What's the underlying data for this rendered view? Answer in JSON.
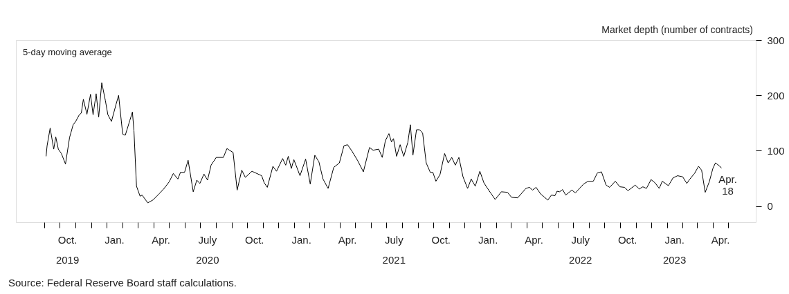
{
  "chart_data": {
    "type": "line",
    "ylabel": "Market depth (number of contracts)",
    "annotations": [
      "5-day moving average",
      {
        "text": "Apr.\n18",
        "x": "2023-04-18",
        "y": 69
      },
      "Source: Federal Reserve Board staff calculations."
    ],
    "xlim": [
      "2019-07-07",
      "2023-06-24"
    ],
    "ylim": [
      -29,
      300
    ],
    "yticks": [
      0,
      100,
      200,
      300
    ],
    "xticks": [
      {
        "value": "2019-09-01",
        "label": null
      },
      {
        "value": "2019-10-01",
        "label": null
      },
      {
        "value": "2019-11-01",
        "label": null
      },
      {
        "value": "2019-12-01",
        "label": null
      },
      {
        "value": "2020-01-01",
        "label": null
      },
      {
        "value": "2020-02-01",
        "label": null
      },
      {
        "value": "2020-03-01",
        "label": null
      },
      {
        "value": "2020-04-01",
        "label": null
      },
      {
        "value": "2020-05-01",
        "label": null
      },
      {
        "value": "2020-06-01",
        "label": null
      },
      {
        "value": "2020-07-01",
        "label": null
      },
      {
        "value": "2020-08-01",
        "label": null
      },
      {
        "value": "2020-09-01",
        "label": null
      },
      {
        "value": "2020-10-01",
        "label": null
      },
      {
        "value": "2020-11-01",
        "label": null
      },
      {
        "value": "2020-12-01",
        "label": null
      },
      {
        "value": "2021-01-01",
        "label": null
      },
      {
        "value": "2021-02-01",
        "label": null
      },
      {
        "value": "2021-03-01",
        "label": null
      },
      {
        "value": "2021-04-01",
        "label": null
      },
      {
        "value": "2021-05-01",
        "label": null
      },
      {
        "value": "2021-06-01",
        "label": null
      },
      {
        "value": "2021-07-01",
        "label": null
      },
      {
        "value": "2021-08-01",
        "label": null
      },
      {
        "value": "2021-09-01",
        "label": null
      },
      {
        "value": "2021-10-01",
        "label": null
      },
      {
        "value": "2021-11-01",
        "label": null
      },
      {
        "value": "2021-12-01",
        "label": null
      },
      {
        "value": "2022-01-01",
        "label": null
      },
      {
        "value": "2022-02-01",
        "label": null
      },
      {
        "value": "2022-03-01",
        "label": null
      },
      {
        "value": "2022-04-01",
        "label": null
      },
      {
        "value": "2022-05-01",
        "label": null
      },
      {
        "value": "2022-06-01",
        "label": null
      },
      {
        "value": "2022-07-01",
        "label": null
      },
      {
        "value": "2022-08-01",
        "label": null
      },
      {
        "value": "2022-09-01",
        "label": null
      },
      {
        "value": "2022-10-01",
        "label": null
      },
      {
        "value": "2022-11-01",
        "label": null
      },
      {
        "value": "2022-12-01",
        "label": null
      },
      {
        "value": "2023-01-01",
        "label": null
      },
      {
        "value": "2023-02-01",
        "label": null
      },
      {
        "value": "2023-03-01",
        "label": null
      },
      {
        "value": "2023-04-01",
        "label": null
      },
      {
        "value": "2023-05-01",
        "label": null
      },
      {
        "value": "2019-10-16",
        "label": "Oct.\n2019"
      },
      {
        "value": "2020-01-16",
        "label": "Jan."
      },
      {
        "value": "2020-04-16",
        "label": "Apr."
      },
      {
        "value": "2020-07-16",
        "label": "July\n2020"
      },
      {
        "value": "2020-10-16",
        "label": "Oct."
      },
      {
        "value": "2021-01-16",
        "label": "Jan."
      },
      {
        "value": "2021-04-16",
        "label": "Apr."
      },
      {
        "value": "2021-07-16",
        "label": "July\n2021"
      },
      {
        "value": "2021-10-16",
        "label": "Oct."
      },
      {
        "value": "2022-01-16",
        "label": "Jan."
      },
      {
        "value": "2022-04-16",
        "label": "Apr."
      },
      {
        "value": "2022-07-16",
        "label": "July\n2022"
      },
      {
        "value": "2022-10-16",
        "label": "Oct."
      },
      {
        "value": "2023-01-16",
        "label": "Jan.\n2023"
      },
      {
        "value": "2023-04-16",
        "label": "Apr."
      }
    ],
    "x": [
      "2019-09-04",
      "2019-09-06",
      "2019-09-12",
      "2019-09-19",
      "2019-09-23",
      "2019-09-28",
      "2019-10-04",
      "2019-10-12",
      "2019-10-20",
      "2019-10-27",
      "2019-11-01",
      "2019-11-08",
      "2019-11-12",
      "2019-11-16",
      "2019-11-23",
      "2019-11-30",
      "2019-12-05",
      "2019-12-11",
      "2019-12-16",
      "2019-12-22",
      "2019-12-29",
      "2020-01-03",
      "2020-01-10",
      "2020-01-19",
      "2020-01-24",
      "2020-02-01",
      "2020-02-06",
      "2020-02-15",
      "2020-02-20",
      "2020-02-23",
      "2020-02-28",
      "2020-03-06",
      "2020-03-10",
      "2020-03-21",
      "2020-03-31",
      "2020-04-13",
      "2020-04-22",
      "2020-05-02",
      "2020-05-10",
      "2020-05-19",
      "2020-05-24",
      "2020-06-01",
      "2020-06-08",
      "2020-06-18",
      "2020-06-25",
      "2020-07-01",
      "2020-07-09",
      "2020-07-16",
      "2020-07-23",
      "2020-08-02",
      "2020-08-16",
      "2020-08-23",
      "2020-09-04",
      "2020-09-12",
      "2020-09-21",
      "2020-09-28",
      "2020-10-11",
      "2020-10-30",
      "2020-11-04",
      "2020-11-10",
      "2020-11-21",
      "2020-11-28",
      "2020-12-10",
      "2020-12-16",
      "2020-12-21",
      "2020-12-27",
      "2021-01-01",
      "2021-01-13",
      "2021-01-24",
      "2021-02-02",
      "2021-02-11",
      "2021-02-19",
      "2021-02-27",
      "2021-03-09",
      "2021-03-20",
      "2021-03-31",
      "2021-04-09",
      "2021-04-16",
      "2021-04-25",
      "2021-05-06",
      "2021-05-17",
      "2021-05-29",
      "2021-06-05",
      "2021-06-16",
      "2021-06-23",
      "2021-06-29",
      "2021-07-06",
      "2021-07-11",
      "2021-07-15",
      "2021-07-21",
      "2021-07-28",
      "2021-08-04",
      "2021-08-12",
      "2021-08-17",
      "2021-08-22",
      "2021-08-29",
      "2021-09-04",
      "2021-09-10",
      "2021-09-17",
      "2021-09-25",
      "2021-09-30",
      "2021-10-06",
      "2021-10-14",
      "2021-10-23",
      "2021-10-30",
      "2021-11-06",
      "2021-11-13",
      "2021-11-20",
      "2021-11-28",
      "2021-12-07",
      "2021-12-14",
      "2021-12-22",
      "2021-12-31",
      "2022-01-08",
      "2022-01-18",
      "2022-01-30",
      "2022-02-11",
      "2022-02-23",
      "2022-03-03",
      "2022-03-15",
      "2022-03-31",
      "2022-04-07",
      "2022-04-13",
      "2022-04-20",
      "2022-04-29",
      "2022-05-13",
      "2022-05-20",
      "2022-05-27",
      "2022-05-31",
      "2022-06-05",
      "2022-06-11",
      "2022-06-17",
      "2022-06-29",
      "2022-07-06",
      "2022-07-22",
      "2022-07-31",
      "2022-08-10",
      "2022-08-18",
      "2022-08-26",
      "2022-09-04",
      "2022-09-11",
      "2022-09-22",
      "2022-10-01",
      "2022-10-10",
      "2022-10-17",
      "2022-10-31",
      "2022-11-08",
      "2022-11-15",
      "2022-11-22",
      "2022-12-01",
      "2022-12-09",
      "2022-12-17",
      "2022-12-23",
      "2023-01-04",
      "2023-01-13",
      "2023-01-22",
      "2023-02-01",
      "2023-02-09",
      "2023-02-15",
      "2023-02-24",
      "2023-03-04",
      "2023-03-10",
      "2023-03-17",
      "2023-03-25",
      "2023-04-01",
      "2023-04-06",
      "2023-04-12",
      "2023-04-18"
    ],
    "series": [
      {
        "color": "#000000",
        "values": [
          90,
          109,
          141,
          103,
          125,
          103,
          95,
          76,
          124,
          147,
          153,
          165,
          168,
          193,
          166,
          202,
          165,
          203,
          161,
          223,
          191,
          165,
          153,
          184,
          200,
          130,
          128,
          155,
          170,
          136,
          36,
          18,
          20,
          6,
          11,
          23,
          32,
          44,
          59,
          49,
          61,
          61,
          83,
          26,
          47,
          41,
          58,
          47,
          74,
          88,
          88,
          104,
          97,
          29,
          65,
          52,
          63,
          55,
          42,
          34,
          72,
          63,
          86,
          74,
          90,
          68,
          84,
          55,
          85,
          40,
          92,
          80,
          49,
          32,
          70,
          78,
          109,
          111,
          99,
          82,
          62,
          106,
          101,
          103,
          88,
          118,
          131,
          116,
          122,
          90,
          111,
          90,
          115,
          147,
          92,
          138,
          138,
          132,
          78,
          61,
          61,
          45,
          57,
          95,
          78,
          88,
          74,
          88,
          53,
          32,
          49,
          36,
          63,
          42,
          28,
          12,
          26,
          25,
          16,
          15,
          32,
          34,
          29,
          34,
          22,
          11,
          20,
          19,
          27,
          26,
          30,
          20,
          29,
          24,
          40,
          45,
          45,
          60,
          62,
          38,
          34,
          45,
          35,
          34,
          28,
          38,
          31,
          35,
          32,
          48,
          42,
          32,
          45,
          37,
          51,
          55,
          53,
          41,
          49,
          59,
          72,
          65,
          25,
          44,
          68,
          78,
          74,
          69
        ]
      }
    ]
  }
}
